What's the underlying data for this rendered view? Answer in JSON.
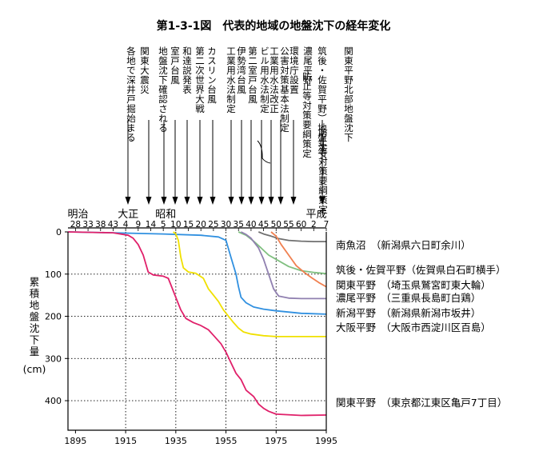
{
  "chart_data": {
    "type": "line",
    "title": "第1-3-1図　代表的地域の地盤沈下の経年変化",
    "ylabel_chars": [
      "累",
      "積",
      "地",
      "盤",
      "沈",
      "下",
      "量"
    ],
    "ylabel_unit": "(cm)",
    "x_ticks": [
      1895,
      1915,
      1935,
      1955,
      1975,
      1995
    ],
    "y_ticks": [
      0,
      100,
      200,
      300,
      400
    ],
    "xlim": [
      1892,
      1995
    ],
    "ylim": [
      0,
      470
    ],
    "grid": "dotted",
    "eras": [
      {
        "label": "明治",
        "year": 1896
      },
      {
        "label": "大正",
        "year": 1916
      },
      {
        "label": "昭和",
        "year": 1931
      },
      {
        "label": "平成",
        "year": 1991
      }
    ],
    "era_years": [
      {
        "label": "28",
        "year": 1895
      },
      {
        "label": "33",
        "year": 1900
      },
      {
        "label": "38",
        "year": 1905
      },
      {
        "label": "43",
        "year": 1910
      },
      {
        "label": "4",
        "year": 1915
      },
      {
        "label": "9",
        "year": 1920
      },
      {
        "label": "14",
        "year": 1925
      },
      {
        "label": "5",
        "year": 1930
      },
      {
        "label": "10",
        "year": 1935
      },
      {
        "label": "15",
        "year": 1940
      },
      {
        "label": "20",
        "year": 1945
      },
      {
        "label": "25",
        "year": 1950
      },
      {
        "label": "30",
        "year": 1955
      },
      {
        "label": "35",
        "year": 1960
      },
      {
        "label": "40",
        "year": 1965
      },
      {
        "label": "45",
        "year": 1970
      },
      {
        "label": "50",
        "year": 1975
      },
      {
        "label": "55",
        "year": 1980
      },
      {
        "label": "60",
        "year": 1985
      },
      {
        "label": "2",
        "year": 1990
      },
      {
        "label": "7",
        "year": 1995
      }
    ],
    "events": [
      {
        "text": "各地で深井戸掘始まる",
        "year": 1915
      },
      {
        "text": "関東大震災",
        "year": 1923
      },
      {
        "text": "地盤沈下確認される",
        "year": 1929
      },
      {
        "text": "室戸台風",
        "year": 1934
      },
      {
        "text": "和達説発表",
        "year": 1939
      },
      {
        "text": "第二次世界大戦",
        "year": 1944
      },
      {
        "text": "カスリン台風",
        "year": 1948
      },
      {
        "text": "工業用水法制定",
        "year": 1956
      },
      {
        "text": "伊勢湾台風",
        "year": 1959
      },
      {
        "text": "第二室戸台風",
        "year": 1962
      },
      {
        "text": "ビル用水法制定",
        "year": 1965
      },
      {
        "text": "工業用水法改正",
        "year": 1968
      },
      {
        "text": "公害対策基本法制定",
        "year": 1971
      },
      {
        "text": "環境庁設置",
        "year": 1975
      },
      {
        "text": "濃尾平野",
        "year": 1988
      },
      {
        "text": "防止等対策要綱策定",
        "year": 1983
      },
      {
        "text": "筑後・佐賀平野）地盤沈下",
        "year": 1987
      },
      {
        "text": "防止等対策要綱策定",
        "year": 1990
      },
      {
        "text": "関東平野北部地盤沈下",
        "year": 1994
      }
    ],
    "series": [
      {
        "name": "南魚沼　（新潟県六日町余川）",
        "color": "#707070",
        "points": [
          [
            1968,
            0
          ],
          [
            1970,
            5
          ],
          [
            1973,
            10
          ],
          [
            1976,
            16
          ],
          [
            1980,
            20
          ],
          [
            1985,
            22
          ],
          [
            1990,
            23
          ],
          [
            1995,
            23
          ]
        ]
      },
      {
        "name": "筑後・佐賀平野（佐賀県白石町横手）",
        "color": "#80c080",
        "points": [
          [
            1960,
            0
          ],
          [
            1963,
            8
          ],
          [
            1966,
            22
          ],
          [
            1969,
            38
          ],
          [
            1972,
            55
          ],
          [
            1975,
            65
          ],
          [
            1980,
            82
          ],
          [
            1985,
            92
          ],
          [
            1990,
            96
          ],
          [
            1995,
            99
          ]
        ]
      },
      {
        "name": "関東平野　（埼玉県鷲宮町東大輪）",
        "color": "#f08050",
        "points": [
          [
            1973,
            0
          ],
          [
            1975,
            10
          ],
          [
            1977,
            30
          ],
          [
            1980,
            55
          ],
          [
            1983,
            80
          ],
          [
            1986,
            95
          ],
          [
            1989,
            108
          ],
          [
            1992,
            120
          ],
          [
            1995,
            130
          ]
        ]
      },
      {
        "name": "濃尾平野　（三重県長島町白鶏）",
        "color": "#9080b0",
        "points": [
          [
            1961,
            0
          ],
          [
            1963,
            6
          ],
          [
            1965,
            15
          ],
          [
            1968,
            38
          ],
          [
            1970,
            65
          ],
          [
            1972,
            100
          ],
          [
            1974,
            135
          ],
          [
            1976,
            152
          ],
          [
            1980,
            157
          ],
          [
            1985,
            158
          ],
          [
            1990,
            158
          ],
          [
            1995,
            158
          ]
        ]
      },
      {
        "name": "新潟平野　（新潟県新潟市坂井）",
        "color": "#3090e0",
        "points": [
          [
            1892,
            0
          ],
          [
            1910,
            2
          ],
          [
            1930,
            5
          ],
          [
            1945,
            8
          ],
          [
            1952,
            12
          ],
          [
            1955,
            20
          ],
          [
            1957,
            60
          ],
          [
            1959,
            100
          ],
          [
            1960,
            130
          ],
          [
            1961,
            155
          ],
          [
            1963,
            168
          ],
          [
            1966,
            178
          ],
          [
            1970,
            183
          ],
          [
            1975,
            187
          ],
          [
            1985,
            193
          ],
          [
            1995,
            195
          ]
        ]
      },
      {
        "name": "大阪平野　（大阪市西淀川区百島）",
        "color": "#f0e000",
        "points": [
          [
            1934,
            0
          ],
          [
            1935,
            5
          ],
          [
            1936,
            20
          ],
          [
            1937,
            60
          ],
          [
            1938,
            85
          ],
          [
            1940,
            95
          ],
          [
            1943,
            98
          ],
          [
            1946,
            110
          ],
          [
            1948,
            135
          ],
          [
            1950,
            150
          ],
          [
            1952,
            165
          ],
          [
            1954,
            185
          ],
          [
            1956,
            200
          ],
          [
            1958,
            215
          ],
          [
            1960,
            228
          ],
          [
            1962,
            237
          ],
          [
            1965,
            242
          ],
          [
            1970,
            246
          ],
          [
            1975,
            248
          ],
          [
            1985,
            248
          ],
          [
            1995,
            248
          ]
        ]
      },
      {
        "name": "関東平野　（東京都江東区亀戸7丁目）",
        "color": "#e0206a",
        "points": [
          [
            1892,
            0
          ],
          [
            1910,
            2
          ],
          [
            1916,
            8
          ],
          [
            1918,
            15
          ],
          [
            1920,
            30
          ],
          [
            1922,
            55
          ],
          [
            1924,
            95
          ],
          [
            1926,
            102
          ],
          [
            1930,
            105
          ],
          [
            1932,
            110
          ],
          [
            1933,
            125
          ],
          [
            1935,
            155
          ],
          [
            1937,
            185
          ],
          [
            1939,
            205
          ],
          [
            1942,
            215
          ],
          [
            1945,
            222
          ],
          [
            1948,
            232
          ],
          [
            1950,
            245
          ],
          [
            1953,
            265
          ],
          [
            1955,
            285
          ],
          [
            1957,
            310
          ],
          [
            1959,
            335
          ],
          [
            1961,
            350
          ],
          [
            1963,
            375
          ],
          [
            1966,
            390
          ],
          [
            1968,
            408
          ],
          [
            1970,
            418
          ],
          [
            1972,
            425
          ],
          [
            1975,
            432
          ],
          [
            1985,
            435
          ],
          [
            1995,
            434
          ]
        ]
      }
    ]
  }
}
